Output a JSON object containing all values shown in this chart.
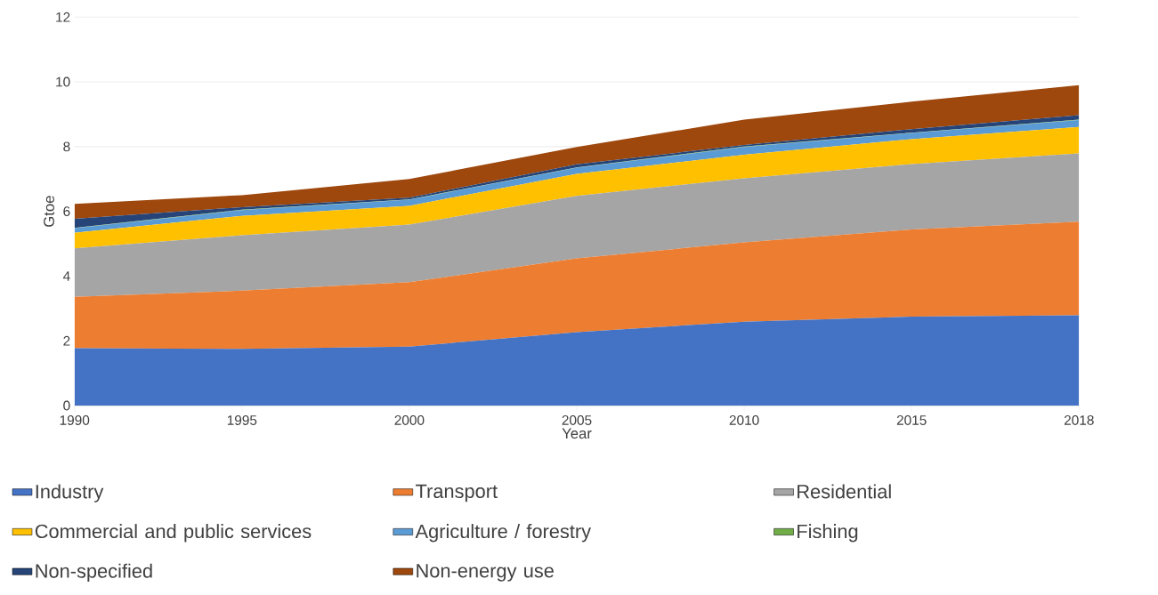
{
  "chart_data": {
    "type": "area",
    "stacked": true,
    "xlabel": "Year",
    "ylabel": "Gtoe",
    "categories": [
      "1990",
      "1995",
      "2000",
      "2005",
      "2010",
      "2015",
      "2018"
    ],
    "ylim": [
      0,
      12
    ],
    "yticks": [
      0,
      2,
      4,
      6,
      8,
      10,
      12
    ],
    "grid": "y",
    "legend": "bottom",
    "series": [
      {
        "name": "Industry",
        "color": "#4472c4",
        "values": [
          1.77,
          1.75,
          1.82,
          2.27,
          2.59,
          2.75,
          2.79
        ]
      },
      {
        "name": "Transport",
        "color": "#ed7d31",
        "values": [
          1.59,
          1.8,
          1.99,
          2.28,
          2.45,
          2.69,
          2.89
        ]
      },
      {
        "name": "Residential",
        "color": "#a5a5a5",
        "values": [
          1.5,
          1.71,
          1.78,
          1.93,
          1.98,
          2.02,
          2.11
        ]
      },
      {
        "name": "Commercial and public services",
        "color": "#ffc000",
        "values": [
          0.48,
          0.6,
          0.58,
          0.68,
          0.73,
          0.77,
          0.82
        ]
      },
      {
        "name": "Agriculture / forestry",
        "color": "#5b9bd5",
        "values": [
          0.14,
          0.18,
          0.19,
          0.19,
          0.24,
          0.19,
          0.21
        ]
      },
      {
        "name": "Fishing",
        "color": "#70ad47",
        "values": [
          0.01,
          0.01,
          0.01,
          0.01,
          0.01,
          0.01,
          0.01
        ]
      },
      {
        "name": "Non-specified",
        "color": "#264478",
        "values": [
          0.28,
          0.08,
          0.05,
          0.09,
          0.05,
          0.11,
          0.14
        ]
      },
      {
        "name": "Non-energy use",
        "color": "#9e480e",
        "values": [
          0.46,
          0.37,
          0.58,
          0.54,
          0.78,
          0.85,
          0.93
        ]
      }
    ]
  }
}
